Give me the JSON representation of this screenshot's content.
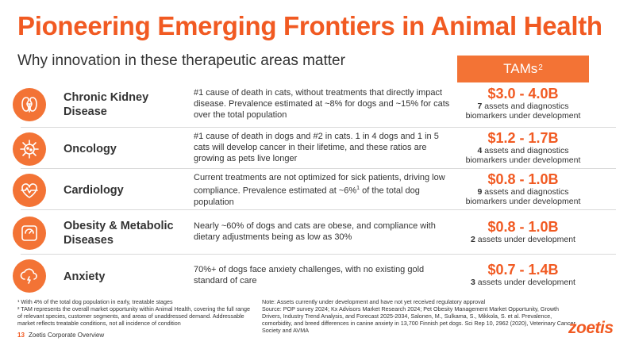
{
  "title": "Pioneering Emerging Frontiers in Animal Health",
  "subtitle": "Why innovation in these therapeutic areas matter",
  "tam_header": {
    "label": "TAMs",
    "sup": "2"
  },
  "rows": [
    {
      "icon": "kidney-icon",
      "title": "Chronic Kidney Disease",
      "description": "#1 cause of death in cats, without treatments that directly impact disease. Prevalence estimated at ~8% for dogs and ~15% for cats over the total population",
      "tam_value": "$3.0 - 4.0B",
      "assets_count": "7",
      "assets_text": "assets and diagnostics biomarkers under development"
    },
    {
      "icon": "virus-icon",
      "title": "Oncology",
      "description": "#1 cause of death in dogs and #2 in cats. 1 in 4 dogs and 1 in 5 cats will develop cancer in their lifetime, and these ratios are growing as pets live longer",
      "tam_value": "$1.2 - 1.7B",
      "assets_count": "4",
      "assets_text": "assets and diagnostics biomarkers under development"
    },
    {
      "icon": "heartbeat-icon",
      "title": "Cardiology",
      "description_pre": "Current treatments are not optimized for sick patients, driving low compliance. Prevalence estimated at ~6%",
      "description_sup": "1",
      "description_post": " of the total dog population",
      "tam_value": "$0.8 - 1.0B",
      "assets_count": "9",
      "assets_text": "assets and diagnostics biomarkers under development"
    },
    {
      "icon": "scale-icon",
      "title": "Obesity & Metabolic Diseases",
      "description": "Nearly ~60% of dogs and cats are obese, and compliance with dietary adjustments being as low as 30%",
      "tam_value": "$0.8 - 1.0B",
      "assets_count": "2",
      "assets_text": "assets under development"
    },
    {
      "icon": "storm-cloud-icon",
      "title": "Anxiety",
      "description": "70%+ of dogs face anxiety challenges, with no existing gold standard of care",
      "tam_value": "$0.7 - 1.4B",
      "assets_count": "3",
      "assets_text": "assets under development"
    }
  ],
  "footnotes": {
    "fn1": "¹ With 4% of the total dog population in early, treatable stages",
    "fn2": "² TAM represents the overall market opportunity within Animal Health, covering the full range of relevant species, customer segments, and areas of unaddressed demand. Addressable market reflects treatable conditions, not all incidence of condition"
  },
  "note": "Note: Assets currently under development and have not yet received regulatory approval\nSource: POP survey 2024; Kx Advisors Market Research 2024; Pet Obesity Management Market Opportunity, Growth Drivers, Industry Trend Analysis, and Forecast 2025-2034, Salonen, M., Sulkama, S., Mikkola, S. et al. Prevalence, comorbidity, and breed differences in canine anxiety in 13,700 Finnish pet dogs. Sci Rep 10, 2962 (2020), Veterinary Cancer Society and AVMA",
  "page_number": "13",
  "page_label": "Zoetis Corporate Overview",
  "logo_text": "zoetis",
  "colors": {
    "accent": "#f15a22",
    "icon_bg": "#f37335",
    "text": "#333333",
    "divider": "#d9d9d9"
  }
}
